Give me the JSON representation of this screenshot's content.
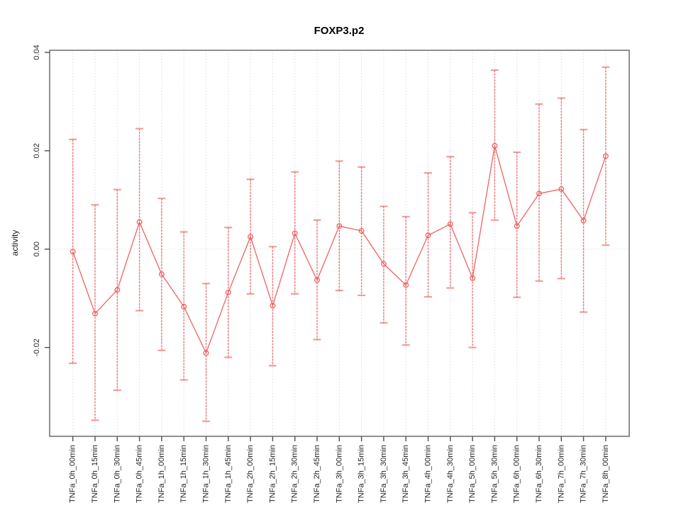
{
  "figure": {
    "title": "FOXP3.p2",
    "ylabel": "activity"
  },
  "chart_data": {
    "type": "line",
    "title": "FOXP3.p2",
    "xlabel": "",
    "ylabel": "activity",
    "ylim": [
      -0.038,
      0.04
    ],
    "yticks": [
      -0.02,
      0,
      0.02,
      0.04
    ],
    "ytick_labels": [
      "-0.02",
      "0.00",
      "0.02",
      "0.04"
    ],
    "grid": "dotted vertical gridline at each category; dotted horizontal line at y=0",
    "legend_position": "none",
    "point_marker": "open-circle",
    "categories": [
      "TNFa_0h_00min",
      "TNFa_0h_15min",
      "TNFa_0h_30min",
      "TNFa_0h_45min",
      "TNFa_1h_00min",
      "TNFa_1h_15min",
      "TNFa_1h_30min",
      "TNFa_1h_45min",
      "TNFa_2h_00min",
      "TNFa_2h_15min",
      "TNFa_2h_30min",
      "TNFa_2h_45min",
      "TNFa_3h_00min",
      "TNFa_3h_15min",
      "TNFa_3h_30min",
      "TNFa_3h_45min",
      "TNFa_4h_00min",
      "TNFa_4h_30min",
      "TNFa_5h_00min",
      "TNFa_5h_30min",
      "TNFa_6h_00min",
      "TNFa_6h_30min",
      "TNFa_7h_00min",
      "TNFa_7h_30min",
      "TNFa_8h_00min"
    ],
    "series": [
      {
        "name": "activity",
        "values": [
          -0.0005,
          -0.0131,
          -0.0083,
          0.0055,
          -0.0051,
          -0.0117,
          -0.0211,
          -0.0088,
          0.0025,
          -0.0115,
          0.0032,
          -0.0063,
          0.0047,
          0.0037,
          -0.003,
          -0.0073,
          0.0028,
          0.0051,
          -0.0059,
          0.021,
          0.0047,
          0.0113,
          0.0122,
          0.0058,
          0.0189
        ],
        "upper": [
          0.0223,
          0.009,
          0.0121,
          0.0245,
          0.0103,
          0.0035,
          -0.007,
          0.0044,
          0.0142,
          0.0005,
          0.0157,
          0.0059,
          0.0179,
          0.0167,
          0.0087,
          0.0066,
          0.0155,
          0.0188,
          0.0074,
          0.0364,
          0.0197,
          0.0295,
          0.0307,
          0.0243,
          0.037
        ],
        "lower": [
          -0.0232,
          -0.0348,
          -0.0287,
          -0.0125,
          -0.0206,
          -0.0266,
          -0.035,
          -0.022,
          -0.0091,
          -0.0237,
          -0.0091,
          -0.0184,
          -0.0084,
          -0.0094,
          -0.015,
          -0.0195,
          -0.0097,
          -0.0079,
          -0.02,
          0.0059,
          -0.0098,
          -0.0065,
          -0.006,
          -0.0128,
          0.0008
        ]
      }
    ],
    "colors": {
      "series": "#EE6363",
      "grid": "#DBDBDB",
      "zero_line": "#E2DCDC",
      "axis": "#757575",
      "tick": "#4D4D4D",
      "text": "#262626",
      "title": "#000000",
      "background": "#FFFFFF"
    }
  }
}
